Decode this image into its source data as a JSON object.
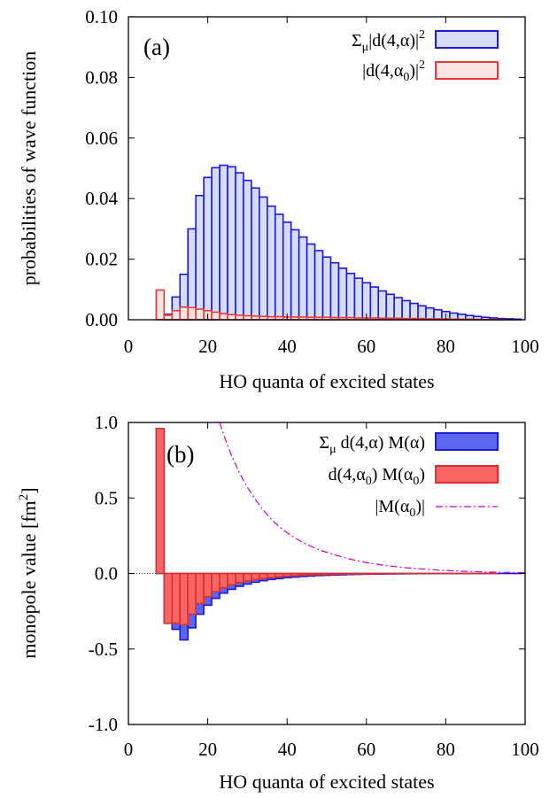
{
  "chart_data": [
    {
      "type": "bar",
      "panel_label": "(a)",
      "xlabel": "HO quanta of excited states",
      "ylabel": "probabilities of wave function",
      "xlim": [
        0,
        100
      ],
      "ylim": [
        0,
        0.1
      ],
      "x_ticks": [
        "0",
        "20",
        "40",
        "60",
        "80",
        "100"
      ],
      "y_ticks": [
        "0.00",
        "0.02",
        "0.04",
        "0.06",
        "0.08",
        "0.10"
      ],
      "x_tick_values": [
        0,
        20,
        40,
        60,
        80,
        100
      ],
      "y_tick_values": [
        0,
        0.02,
        0.04,
        0.06,
        0.08,
        0.1
      ],
      "legend_position": "top-right",
      "bin_width": 2,
      "x": [
        8,
        10,
        12,
        14,
        16,
        18,
        20,
        22,
        24,
        26,
        28,
        30,
        32,
        34,
        36,
        38,
        40,
        42,
        44,
        46,
        48,
        50,
        52,
        54,
        56,
        58,
        60,
        62,
        64,
        66,
        68,
        70,
        72,
        74,
        76,
        78,
        80,
        82,
        84,
        86,
        88,
        90,
        92,
        94,
        96,
        98
      ],
      "series": [
        {
          "name": "Σ_μ|d(4,α)|^2",
          "legend_main": "Σ",
          "legend_sub": "μ",
          "legend_rest": "|d(4,α)|",
          "legend_sup": "2",
          "fill": "#d6dcf5",
          "stroke": "#1a1adc",
          "values": [
            0.0,
            0.0018,
            0.0075,
            0.015,
            0.03,
            0.041,
            0.047,
            0.0502,
            0.051,
            0.0505,
            0.0485,
            0.046,
            0.0435,
            0.0405,
            0.0375,
            0.0348,
            0.0322,
            0.0297,
            0.0273,
            0.025,
            0.0228,
            0.0207,
            0.0188,
            0.017,
            0.0153,
            0.0137,
            0.0122,
            0.0108,
            0.0095,
            0.0084,
            0.0073,
            0.0063,
            0.0054,
            0.0046,
            0.0039,
            0.0033,
            0.0027,
            0.0022,
            0.0018,
            0.0014,
            0.0011,
            0.0008,
            0.0006,
            0.0004,
            0.0003,
            0.0002
          ]
        },
        {
          "name": "|d(4,α0)|^2",
          "legend_main": "|d(4,α",
          "legend_sub": "0",
          "legend_rest": ")|",
          "legend_sup": "2",
          "fill": "#fbe3e3",
          "stroke": "#e23a3a",
          "values": [
            0.0098,
            0.0015,
            0.003,
            0.0042,
            0.004,
            0.0035,
            0.003,
            0.0025,
            0.002,
            0.0017,
            0.0015,
            0.0013,
            0.0012,
            0.0011,
            0.001,
            0.001,
            0.0009,
            0.0009,
            0.0009,
            0.0008,
            0.0008,
            0.0008,
            0.0007,
            0.0007,
            0.0007,
            0.0006,
            0.0006,
            0.0006,
            0.0005,
            0.0005,
            0.0005,
            0.0004,
            0.0004,
            0.0004,
            0.0003,
            0.0003,
            0.0003,
            0.0002,
            0.0002,
            0.0002,
            0.0001,
            0.0001,
            0.0001,
            0.0001,
            0.0,
            0.0
          ]
        }
      ]
    },
    {
      "type": "bar",
      "panel_label": "(b)",
      "xlabel": "HO quanta of excited states",
      "ylabel_main": "monopole value [fm",
      "ylabel_sup": "2",
      "ylabel_end": "]",
      "xlim": [
        0,
        100
      ],
      "ylim": [
        -1,
        1
      ],
      "x_ticks": [
        "0",
        "20",
        "40",
        "60",
        "80",
        "100"
      ],
      "y_ticks": [
        "-1.0",
        "-0.5",
        "0.0",
        "0.5",
        "1.0"
      ],
      "x_tick_values": [
        0,
        20,
        40,
        60,
        80,
        100
      ],
      "y_tick_values": [
        -1,
        -0.5,
        0,
        0.5,
        1
      ],
      "legend_position": "top-right",
      "bin_width": 2,
      "zero_line": true,
      "x": [
        8,
        10,
        12,
        14,
        16,
        18,
        20,
        22,
        24,
        26,
        28,
        30,
        32,
        34,
        36,
        38,
        40,
        42,
        44,
        46,
        48,
        50,
        52,
        54,
        56,
        58,
        60,
        62,
        64,
        66,
        68,
        70,
        72,
        74,
        76,
        78,
        80,
        82,
        84,
        86,
        88,
        90,
        92,
        94,
        96,
        98
      ],
      "series": [
        {
          "name": "Σ_μ d(4,α) M(α)",
          "legend_main": "Σ",
          "legend_sub": "μ",
          "legend_rest": " d(4,α) M(α)",
          "fill": "#5a66ee",
          "stroke": "#1a1adc",
          "values": [
            0.96,
            -0.33,
            -0.37,
            -0.44,
            -0.36,
            -0.27,
            -0.21,
            -0.165,
            -0.13,
            -0.105,
            -0.085,
            -0.07,
            -0.058,
            -0.048,
            -0.04,
            -0.034,
            -0.028,
            -0.024,
            -0.02,
            -0.017,
            -0.014,
            -0.012,
            -0.01,
            -0.009,
            -0.007,
            -0.006,
            -0.005,
            -0.004,
            -0.0035,
            -0.003,
            -0.0025,
            -0.002,
            -0.0017,
            -0.0014,
            -0.0011,
            -0.0009,
            -0.0007,
            -0.0006,
            -0.0005,
            -0.0004,
            -0.0003,
            -0.0002,
            -0.0002,
            -0.0001,
            -0.0001,
            -0.0001
          ]
        },
        {
          "name": "d(4,α0) M(α0)",
          "legend_main": "d(4,α",
          "legend_sub": "0",
          "legend_rest": ") M(α",
          "legend_sub2": "0",
          "legend_end": ")",
          "fill": "#f76464",
          "stroke": "#d63030",
          "values": [
            0.96,
            -0.33,
            -0.33,
            -0.34,
            -0.27,
            -0.2,
            -0.155,
            -0.12,
            -0.095,
            -0.075,
            -0.06,
            -0.05,
            -0.04,
            -0.033,
            -0.027,
            -0.022,
            -0.018,
            -0.015,
            -0.012,
            -0.01,
            -0.008,
            -0.007,
            -0.006,
            -0.005,
            -0.004,
            -0.0035,
            -0.003,
            -0.0025,
            -0.002,
            -0.0017,
            -0.0014,
            -0.0011,
            -0.0009,
            -0.0007,
            -0.0006,
            -0.0005,
            -0.0004,
            -0.0003,
            -0.0002,
            -0.0002,
            -0.0001,
            -0.0001,
            -0.0001,
            0,
            0,
            0
          ]
        },
        {
          "name": "|M(α0)|",
          "legend_main": "|M(α",
          "legend_sub": "0",
          "legend_rest": ")|",
          "type": "line",
          "stroke": "#cc00cc",
          "x": [
            23,
            24,
            26,
            28,
            30,
            32,
            34,
            36,
            38,
            40,
            42,
            44,
            46,
            48,
            50,
            55,
            60,
            65,
            70,
            75,
            80,
            85,
            90,
            95,
            100
          ],
          "values": [
            1.0,
            0.92,
            0.78,
            0.665,
            0.57,
            0.49,
            0.42,
            0.36,
            0.31,
            0.27,
            0.235,
            0.205,
            0.18,
            0.158,
            0.14,
            0.1,
            0.072,
            0.052,
            0.038,
            0.028,
            0.02,
            0.014,
            0.01,
            0.007,
            0.005
          ]
        }
      ]
    }
  ]
}
